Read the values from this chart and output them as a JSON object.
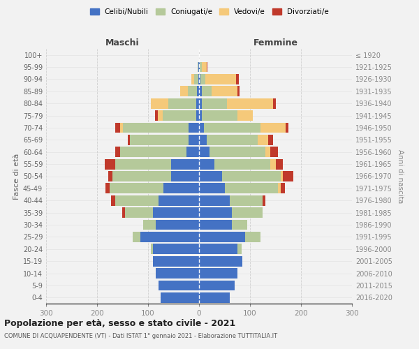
{
  "age_groups": [
    "0-4",
    "5-9",
    "10-14",
    "15-19",
    "20-24",
    "25-29",
    "30-34",
    "35-39",
    "40-44",
    "45-49",
    "50-54",
    "55-59",
    "60-64",
    "65-69",
    "70-74",
    "75-79",
    "80-84",
    "85-89",
    "90-94",
    "95-99",
    "100+"
  ],
  "birth_years": [
    "2016-2020",
    "2011-2015",
    "2006-2010",
    "2001-2005",
    "1996-2000",
    "1991-1995",
    "1986-1990",
    "1981-1985",
    "1976-1980",
    "1971-1975",
    "1966-1970",
    "1961-1965",
    "1956-1960",
    "1951-1955",
    "1946-1950",
    "1941-1945",
    "1936-1940",
    "1931-1935",
    "1926-1930",
    "1921-1925",
    "≤ 1920"
  ],
  "maschi": {
    "celibi": [
      75,
      80,
      85,
      90,
      90,
      115,
      85,
      90,
      80,
      70,
      55,
      55,
      25,
      20,
      20,
      6,
      5,
      4,
      2,
      1,
      0
    ],
    "coniugati": [
      0,
      0,
      0,
      0,
      5,
      15,
      25,
      55,
      85,
      105,
      115,
      110,
      130,
      115,
      130,
      65,
      55,
      18,
      8,
      2,
      0
    ],
    "vedovi": [
      0,
      0,
      0,
      0,
      0,
      0,
      0,
      0,
      0,
      0,
      0,
      0,
      0,
      0,
      5,
      10,
      35,
      15,
      5,
      0,
      0
    ],
    "divorziati": [
      0,
      0,
      0,
      0,
      0,
      0,
      0,
      5,
      8,
      8,
      8,
      20,
      10,
      5,
      10,
      5,
      0,
      0,
      0,
      0,
      0
    ]
  },
  "femmine": {
    "nubili": [
      60,
      70,
      75,
      85,
      75,
      90,
      65,
      65,
      60,
      50,
      45,
      30,
      20,
      15,
      10,
      5,
      5,
      5,
      3,
      2,
      0
    ],
    "coniugate": [
      0,
      0,
      0,
      0,
      8,
      30,
      30,
      60,
      65,
      105,
      115,
      110,
      110,
      100,
      110,
      70,
      50,
      20,
      10,
      3,
      0
    ],
    "vedove": [
      0,
      0,
      0,
      0,
      0,
      0,
      0,
      0,
      0,
      5,
      5,
      10,
      10,
      20,
      50,
      30,
      90,
      50,
      60,
      10,
      0
    ],
    "divorziate": [
      0,
      0,
      0,
      0,
      0,
      0,
      0,
      0,
      5,
      8,
      20,
      15,
      15,
      10,
      5,
      0,
      5,
      5,
      5,
      2,
      0
    ]
  },
  "colors": {
    "celibi_nubili": "#4472c4",
    "coniugati": "#b5c99a",
    "vedovi": "#f5c97a",
    "divorziati": "#c0392b"
  },
  "xlim": 300,
  "title": "Popolazione per età, sesso e stato civile - 2021",
  "subtitle": "COMUNE DI ACQUAPENDENTE (VT) - Dati ISTAT 1° gennaio 2021 - Elaborazione TUTTITALIA.IT",
  "ylabel_left": "Fasce di età",
  "ylabel_right": "Anni di nascita",
  "xlabel_maschi": "Maschi",
  "xlabel_femmine": "Femmine",
  "bg_color": "#f2f2f2",
  "grid_color": "#cccccc",
  "bar_height": 0.85
}
